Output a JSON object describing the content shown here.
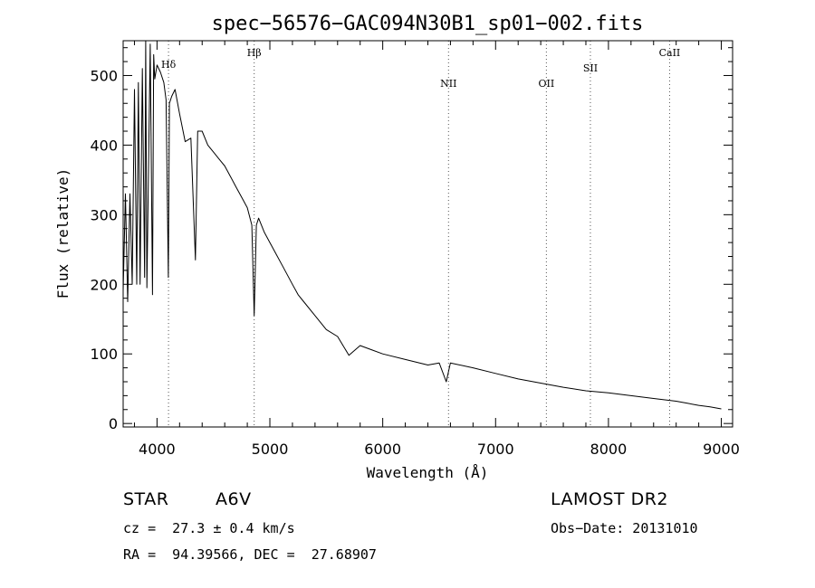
{
  "chart_data": {
    "type": "line",
    "title": "spec−56576−GAC094N30B1_sp01−002.fits",
    "xlabel": "Wavelength (Å)",
    "ylabel": "Flux (relative)",
    "xlim": [
      3700,
      9100
    ],
    "ylim": [
      -5,
      550
    ],
    "x_ticks": [
      4000,
      5000,
      6000,
      7000,
      8000,
      9000
    ],
    "y_ticks": [
      0,
      100,
      200,
      300,
      400,
      500
    ],
    "grid": false,
    "series": [
      {
        "color": "#000000",
        "x": [
          3700,
          3720,
          3740,
          3760,
          3780,
          3800,
          3820,
          3835,
          3850,
          3870,
          3890,
          3900,
          3910,
          3940,
          3960,
          3970,
          3980,
          4000,
          4030,
          4060,
          4080,
          4100,
          4110,
          4130,
          4160,
          4200,
          4250,
          4300,
          4340,
          4360,
          4400,
          4450,
          4500,
          4550,
          4600,
          4650,
          4700,
          4750,
          4800,
          4840,
          4861,
          4880,
          4900,
          4950,
          5000,
          5050,
          5100,
          5150,
          5200,
          5250,
          5300,
          5400,
          5500,
          5600,
          5700,
          5800,
          5900,
          6000,
          6200,
          6400,
          6500,
          6563,
          6600,
          6800,
          7000,
          7200,
          7400,
          7600,
          7800,
          8000,
          8200,
          8400,
          8500,
          8600,
          8700,
          8800,
          8900,
          9000
        ],
        "y": [
          190,
          330,
          175,
          330,
          200,
          480,
          200,
          490,
          200,
          510,
          210,
          550,
          195,
          545,
          185,
          530,
          495,
          515,
          505,
          490,
          465,
          210,
          460,
          470,
          480,
          445,
          405,
          410,
          235,
          420,
          420,
          400,
          390,
          380,
          370,
          355,
          340,
          325,
          310,
          285,
          155,
          285,
          295,
          275,
          260,
          245,
          230,
          215,
          200,
          185,
          175,
          155,
          135,
          125,
          98,
          112,
          106,
          100,
          92,
          84,
          87,
          60,
          87,
          80,
          72,
          64,
          58,
          52,
          47,
          44,
          40,
          36,
          34,
          32,
          29,
          26,
          24,
          21
        ]
      }
    ],
    "annotations": [
      {
        "label": "Hδ",
        "x": 4102
      },
      {
        "label": "Hβ",
        "x": 4861
      },
      {
        "label": "NII",
        "x": 6583
      },
      {
        "label": "OII",
        "x": 7450
      },
      {
        "label": "SII",
        "x": 7840
      },
      {
        "label": "CaII",
        "x": 8542
      }
    ]
  },
  "info": {
    "class_label": "STAR",
    "subclass": "A6V",
    "survey": "LAMOST DR2",
    "redshift": "cz =  27.3 ± 0.4 km/s",
    "obs_date": "Obs−Date: 20131010",
    "coords": "RA =  94.39566, DEC =  27.68907"
  }
}
